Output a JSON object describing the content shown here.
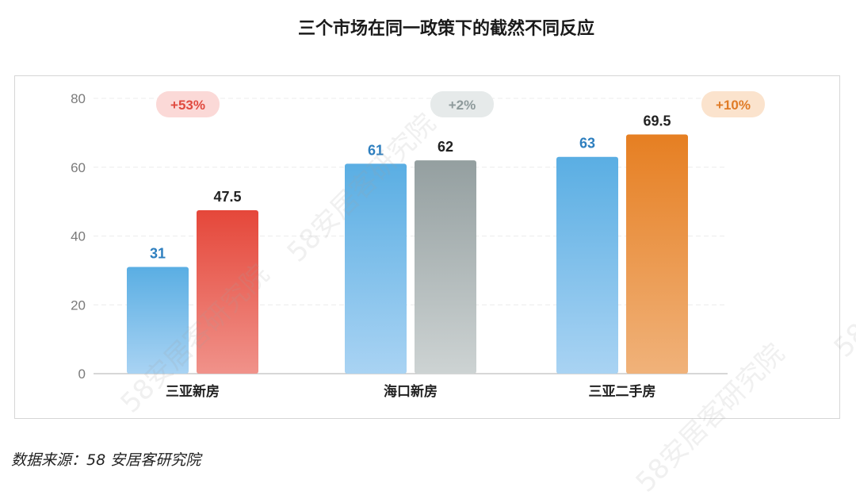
{
  "title": "三个市场在同一政策下的截然不同反应",
  "source": "数据来源：58 安居客研究院",
  "watermark": "58安居客研究院",
  "chart_data": {
    "type": "bar",
    "title": "三个市场在同一政策下的截然不同反应",
    "ylabel": "",
    "ylim": [
      0,
      80
    ],
    "yticks": [
      0,
      20,
      40,
      60,
      80
    ],
    "grid": true,
    "categories": [
      "三亚新房",
      "海口新房",
      "三亚二手房"
    ],
    "groups": [
      {
        "category": "三亚新房",
        "values": [
          31,
          47.5
        ],
        "change": "+53%",
        "colors": [
          [
            "#5aaee3",
            "#a9d3f3"
          ],
          [
            "#e5473a",
            "#f0928a"
          ]
        ],
        "label_colors": [
          "#2e7fbf",
          "#222222"
        ],
        "badge_bg": "#fbd9d7",
        "badge_fg": "#e04a3f"
      },
      {
        "category": "海口新房",
        "values": [
          61,
          62
        ],
        "change": "+2%",
        "colors": [
          [
            "#5aaee3",
            "#a9d3f3"
          ],
          [
            "#949fa0",
            "#cdd3d3"
          ]
        ],
        "label_colors": [
          "#2e7fbf",
          "#222222"
        ],
        "badge_bg": "#e6eaea",
        "badge_fg": "#8e9a9b"
      },
      {
        "category": "三亚二手房",
        "values": [
          63,
          69.5
        ],
        "change": "+10%",
        "colors": [
          [
            "#5aaee3",
            "#a9d3f3"
          ],
          [
            "#e67f22",
            "#f0b27a"
          ]
        ],
        "label_colors": [
          "#2e7fbf",
          "#222222"
        ],
        "badge_bg": "#fbe3cd",
        "badge_fg": "#e07b26"
      }
    ]
  }
}
